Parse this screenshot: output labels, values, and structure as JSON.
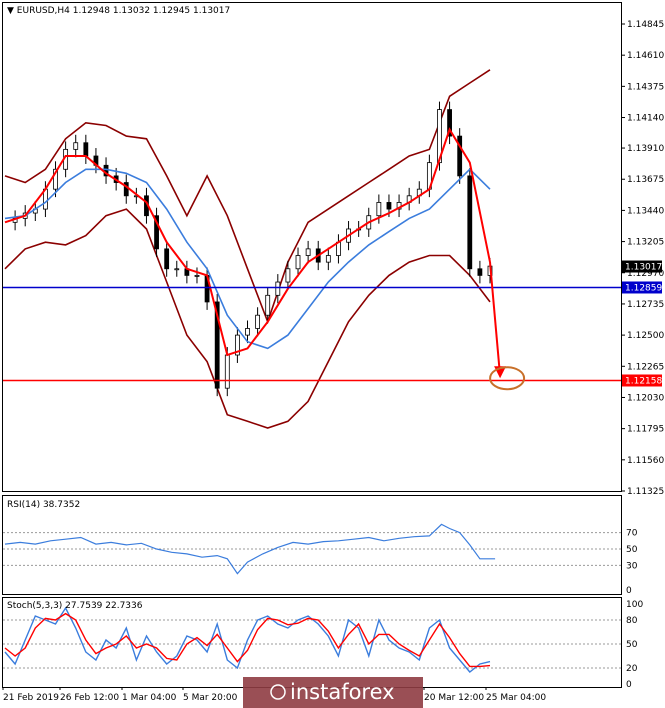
{
  "header": {
    "symbol_line": "EURUSD,H4  1.12948 1.13032 1.12945 1.13017"
  },
  "watermark": {
    "brand": "instaforex"
  },
  "colors": {
    "bollinger": "#8b0000",
    "ma_fast": "#ff0000",
    "ma_slow": "#3b7ddd",
    "support_line": "#0000cc",
    "target_line": "#ff0000",
    "arrow": "#ff0000",
    "target_circle": "#c8702a",
    "rsi_line": "#3b7ddd",
    "stoch_main": "#3b7ddd",
    "stoch_signal": "#ff0000",
    "candles": "#000000",
    "price_tag_current": "#000000",
    "price_tag_support": "#0000cc",
    "price_tag_target": "#ff0000",
    "watermark_bg": "#8f3c43"
  },
  "chart_data": [
    {
      "type": "line",
      "panel": "price",
      "title": "EURUSD,H4",
      "ohlc_header": {
        "open": 1.12948,
        "high": 1.13032,
        "low": 1.12945,
        "close": 1.13017
      },
      "ylim": [
        1.11325,
        1.14845
      ],
      "y_ticks": [
        "1.14845",
        "1.14610",
        "1.14375",
        "1.14140",
        "1.13910",
        "1.13675",
        "1.13440",
        "1.13205",
        "1.12970",
        "1.12735",
        "1.12500",
        "1.12265",
        "1.12030",
        "1.11795",
        "1.11560",
        "1.11325"
      ],
      "price_tags": [
        {
          "name": "current",
          "value": "1.13017"
        },
        {
          "name": "support",
          "value": "1.12859"
        },
        {
          "name": "target",
          "value": "1.12158"
        }
      ],
      "horizontal_lines": [
        {
          "name": "support",
          "value": 1.12859
        },
        {
          "name": "target",
          "value": 1.12158
        }
      ],
      "x_ticks": [
        "21 Feb 2019",
        "26 Feb 12:00",
        "1 Mar 04:00",
        "5 Mar 20:00",
        "20 Mar 12:00",
        "25 Mar 04:00"
      ],
      "series": [
        {
          "name": "close",
          "x": [
            0,
            10,
            20,
            30,
            40,
            50,
            60,
            70,
            80,
            90,
            100,
            110,
            120,
            130,
            140,
            150,
            160,
            170,
            180,
            190,
            200,
            210,
            220,
            230,
            240,
            250,
            260,
            270,
            280,
            290,
            300,
            310,
            320,
            330,
            340,
            350,
            360,
            370,
            380,
            390,
            400,
            410,
            420,
            430,
            440,
            450,
            460,
            470,
            480
          ],
          "values": [
            1.1335,
            1.1338,
            1.1342,
            1.1345,
            1.136,
            1.1375,
            1.139,
            1.1395,
            1.1385,
            1.1378,
            1.137,
            1.1365,
            1.1355,
            1.1355,
            1.134,
            1.1315,
            1.13,
            1.13,
            1.1295,
            1.1295,
            1.1275,
            1.121,
            1.1235,
            1.125,
            1.1255,
            1.1265,
            1.128,
            1.129,
            1.13,
            1.131,
            1.1315,
            1.1305,
            1.131,
            1.132,
            1.133,
            1.133,
            1.134,
            1.135,
            1.1345,
            1.135,
            1.1355,
            1.136,
            1.138,
            1.142,
            1.14,
            1.137,
            1.13,
            1.1295,
            1.1302
          ]
        },
        {
          "name": "bollinger_upper",
          "x": [
            0,
            20,
            40,
            60,
            80,
            100,
            120,
            140,
            160,
            180,
            200,
            220,
            240,
            260,
            280,
            300,
            320,
            340,
            360,
            380,
            400,
            420,
            440,
            460,
            480
          ],
          "values": [
            1.137,
            1.1365,
            1.1375,
            1.1398,
            1.141,
            1.1408,
            1.14,
            1.1398,
            1.137,
            1.134,
            1.137,
            1.134,
            1.13,
            1.126,
            1.1305,
            1.1335,
            1.1345,
            1.1355,
            1.1365,
            1.1375,
            1.1385,
            1.139,
            1.143,
            1.144,
            1.145
          ]
        },
        {
          "name": "bollinger_lower",
          "x": [
            0,
            20,
            40,
            60,
            80,
            100,
            120,
            140,
            160,
            180,
            200,
            220,
            240,
            260,
            280,
            300,
            320,
            340,
            360,
            380,
            400,
            420,
            440,
            460,
            480
          ],
          "values": [
            1.13,
            1.1315,
            1.132,
            1.1318,
            1.1325,
            1.134,
            1.1345,
            1.133,
            1.129,
            1.125,
            1.123,
            1.119,
            1.1185,
            1.118,
            1.1185,
            1.12,
            1.123,
            1.126,
            1.128,
            1.1295,
            1.1305,
            1.131,
            1.131,
            1.1295,
            1.1275
          ]
        },
        {
          "name": "ma_slow",
          "x": [
            0,
            20,
            40,
            60,
            80,
            100,
            120,
            140,
            160,
            180,
            200,
            220,
            240,
            260,
            280,
            300,
            320,
            340,
            360,
            380,
            400,
            420,
            440,
            460,
            480
          ],
          "values": [
            1.1338,
            1.134,
            1.135,
            1.1365,
            1.1375,
            1.1375,
            1.1372,
            1.1365,
            1.1345,
            1.132,
            1.13,
            1.1265,
            1.1245,
            1.124,
            1.125,
            1.127,
            1.129,
            1.1305,
            1.1318,
            1.1328,
            1.1338,
            1.1345,
            1.136,
            1.1375,
            1.136
          ]
        },
        {
          "name": "ma_fast",
          "x": [
            0,
            20,
            40,
            60,
            80,
            100,
            120,
            140,
            160,
            180,
            200,
            220,
            240,
            260,
            280,
            300,
            320,
            340,
            360,
            380,
            400,
            420,
            440,
            460,
            480
          ],
          "values": [
            1.1335,
            1.134,
            1.136,
            1.1385,
            1.1385,
            1.1372,
            1.1362,
            1.135,
            1.132,
            1.13,
            1.1295,
            1.1235,
            1.124,
            1.126,
            1.1285,
            1.1305,
            1.1315,
            1.1325,
            1.1335,
            1.1342,
            1.135,
            1.136,
            1.1405,
            1.138,
            1.1305
          ]
        }
      ],
      "forecast_arrow": {
        "from": {
          "x": 480,
          "y": 1.1305
        },
        "to": {
          "x": 490,
          "y": 1.1219
        }
      }
    },
    {
      "type": "line",
      "panel": "rsi",
      "title": "RSI(14) 38.7352",
      "ylim": [
        0,
        100
      ],
      "y_ticks": [
        "70",
        "50",
        "30",
        "0"
      ],
      "levels": [
        70,
        50,
        30
      ],
      "series": [
        {
          "name": "RSI(14)",
          "x": [
            0,
            15,
            30,
            45,
            60,
            75,
            90,
            105,
            120,
            135,
            150,
            165,
            180,
            195,
            210,
            220,
            230,
            240,
            255,
            270,
            285,
            300,
            315,
            330,
            345,
            360,
            375,
            390,
            405,
            420,
            432,
            440,
            450,
            460,
            470,
            485
          ],
          "values": [
            56,
            58,
            56,
            60,
            62,
            64,
            56,
            58,
            55,
            57,
            50,
            46,
            44,
            40,
            42,
            38,
            20,
            34,
            44,
            52,
            58,
            56,
            59,
            60,
            62,
            64,
            60,
            63,
            65,
            66,
            80,
            75,
            70,
            55,
            38,
            38
          ]
        }
      ]
    },
    {
      "type": "line",
      "panel": "stochastic",
      "title": "Stoch(5,3,3) 27.7539 22.7336",
      "ylim": [
        0,
        100
      ],
      "y_ticks": [
        "100",
        "80",
        "50",
        "20",
        "0"
      ],
      "levels": [
        80,
        50,
        20
      ],
      "series": [
        {
          "name": "main",
          "x": [
            0,
            10,
            20,
            30,
            40,
            50,
            60,
            70,
            80,
            90,
            100,
            110,
            120,
            130,
            140,
            150,
            160,
            170,
            180,
            190,
            200,
            210,
            220,
            230,
            240,
            250,
            260,
            270,
            280,
            290,
            300,
            310,
            320,
            330,
            340,
            350,
            360,
            370,
            380,
            390,
            400,
            410,
            420,
            430,
            440,
            450,
            460,
            470,
            480
          ],
          "values": [
            40,
            25,
            55,
            85,
            80,
            75,
            95,
            70,
            40,
            30,
            55,
            45,
            70,
            30,
            60,
            40,
            25,
            35,
            60,
            55,
            40,
            75,
            30,
            20,
            55,
            80,
            85,
            75,
            70,
            80,
            85,
            75,
            60,
            35,
            80,
            70,
            35,
            80,
            55,
            45,
            40,
            30,
            70,
            80,
            45,
            30,
            15,
            25,
            28
          ]
        },
        {
          "name": "signal",
          "x": [
            0,
            10,
            20,
            30,
            40,
            50,
            60,
            70,
            80,
            90,
            100,
            110,
            120,
            130,
            140,
            150,
            160,
            170,
            180,
            190,
            200,
            210,
            220,
            230,
            240,
            250,
            260,
            270,
            280,
            290,
            300,
            310,
            320,
            330,
            340,
            350,
            360,
            370,
            380,
            390,
            400,
            410,
            420,
            430,
            440,
            450,
            460,
            470,
            480
          ],
          "values": [
            45,
            35,
            45,
            70,
            82,
            80,
            88,
            80,
            55,
            38,
            45,
            50,
            60,
            45,
            50,
            45,
            32,
            30,
            50,
            58,
            48,
            62,
            45,
            28,
            42,
            68,
            82,
            80,
            74,
            76,
            82,
            80,
            66,
            45,
            62,
            75,
            50,
            62,
            62,
            50,
            42,
            35,
            55,
            75,
            58,
            38,
            22,
            22,
            23
          ]
        }
      ]
    }
  ]
}
